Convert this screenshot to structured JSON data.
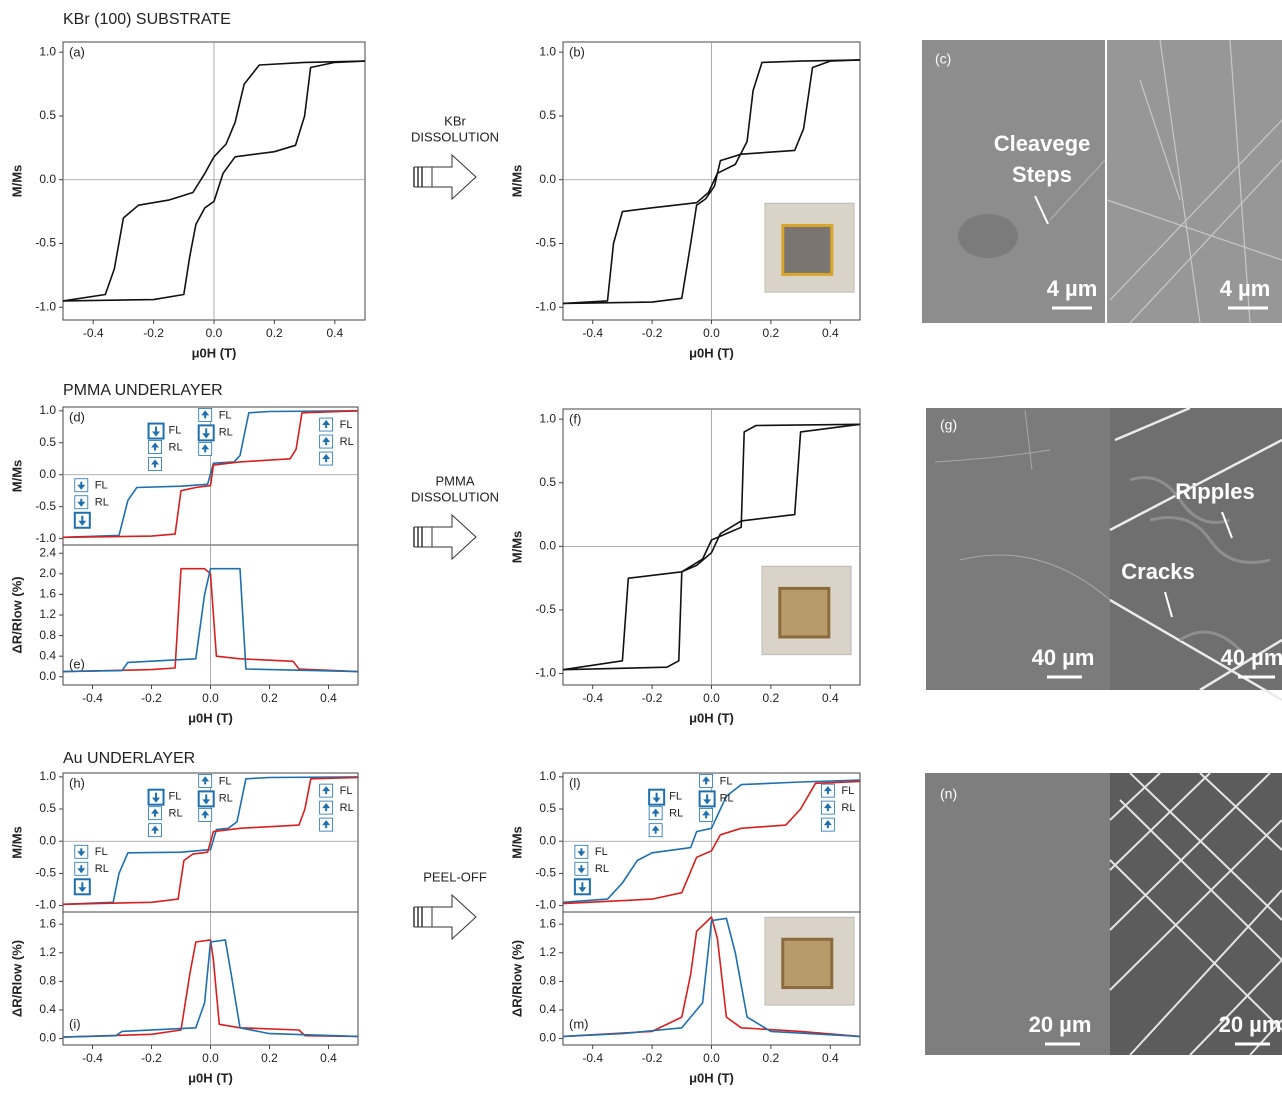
{
  "sections": [
    "KBr (100) SUBSTRATE",
    "PMMA UNDERLAYER",
    "Au UNDERLAYER"
  ],
  "transfers": [
    {
      "lines": [
        "KBr",
        "DISSOLUTION"
      ]
    },
    {
      "lines": [
        "PMMA",
        "DISSOLUTION"
      ]
    },
    {
      "lines": [
        "PEEL-OFF"
      ]
    }
  ],
  "images": [
    {
      "panel": "(c)",
      "notes": [
        "Cleavege",
        "Steps"
      ],
      "scale_bars": [
        "4 µm",
        "4 µm"
      ]
    },
    {
      "panel": "(g)",
      "notes": [
        "Ripples",
        "Cracks"
      ],
      "scale_bars": [
        "40 µm",
        "40 µm"
      ]
    },
    {
      "panel": "(n)",
      "scale_bars": [
        "20 µm",
        "20 µm"
      ]
    }
  ],
  "chart_data": [
    {
      "type": "line",
      "panel": "(a)",
      "ylabel": "M/Ms",
      "xlabel": "μ0H (T)",
      "xlim": [
        -0.5,
        0.5
      ],
      "ylim": [
        -1.1,
        1.08
      ],
      "xticks": [
        -0.4,
        -0.2,
        {
          "value": 0,
          "label": "0.0"
        },
        0.2,
        0.4
      ],
      "yticks": [
        {
          "value": -1,
          "label": "-1.0"
        },
        -0.5,
        {
          "value": 0,
          "label": "0.0"
        },
        0.5,
        {
          "value": 1,
          "label": "1.0"
        }
      ],
      "series": [
        {
          "color": "#111111",
          "x": [
            0.5,
            0.3,
            0.15,
            0.1,
            0.07,
            0.04,
            0,
            -0.03,
            -0.07,
            -0.15,
            -0.25,
            -0.3,
            -0.33,
            -0.36,
            -0.5
          ],
          "values": [
            0.93,
            0.92,
            0.9,
            0.75,
            0.45,
            0.28,
            0.18,
            0.05,
            -0.1,
            -0.16,
            -0.2,
            -0.3,
            -0.7,
            -0.9,
            -0.95
          ]
        },
        {
          "color": "#111111",
          "x": [
            -0.5,
            -0.2,
            -0.1,
            -0.08,
            -0.06,
            -0.03,
            0,
            0.03,
            0.07,
            0.2,
            0.27,
            0.3,
            0.32,
            0.4,
            0.5
          ],
          "values": [
            -0.95,
            -0.94,
            -0.9,
            -0.6,
            -0.35,
            -0.22,
            -0.17,
            0.05,
            0.18,
            0.22,
            0.27,
            0.5,
            0.88,
            0.92,
            0.93
          ]
        }
      ]
    },
    {
      "type": "line",
      "panel": "(b)",
      "ylabel": "M/Ms",
      "xlabel": "μ0H (T)",
      "xlim": [
        -0.5,
        0.5
      ],
      "ylim": [
        -1.1,
        1.08
      ],
      "xticks": [
        -0.4,
        -0.2,
        {
          "value": 0,
          "label": "0.0"
        },
        0.2,
        0.4
      ],
      "yticks": [
        {
          "value": -1,
          "label": "-1.0"
        },
        -0.5,
        {
          "value": 0,
          "label": "0.0"
        },
        0.5,
        {
          "value": 1,
          "label": "1.0"
        }
      ],
      "series": [
        {
          "color": "#111111",
          "x": [
            0.5,
            0.3,
            0.17,
            0.14,
            0.12,
            0.08,
            0.02,
            -0.01,
            -0.05,
            -0.2,
            -0.3,
            -0.33,
            -0.35,
            -0.5
          ],
          "values": [
            0.94,
            0.93,
            0.92,
            0.7,
            0.3,
            0.12,
            0.05,
            -0.1,
            -0.18,
            -0.22,
            -0.25,
            -0.5,
            -0.95,
            -0.97
          ]
        },
        {
          "color": "#111111",
          "x": [
            -0.5,
            -0.2,
            -0.1,
            -0.07,
            -0.05,
            -0.02,
            0.01,
            0.03,
            0.1,
            0.28,
            0.31,
            0.34,
            0.4,
            0.5
          ],
          "values": [
            -0.97,
            -0.96,
            -0.93,
            -0.5,
            -0.2,
            -0.15,
            -0.05,
            0.15,
            0.2,
            0.23,
            0.4,
            0.88,
            0.93,
            0.94
          ]
        }
      ]
    },
    {
      "type": "line",
      "panel": "(d)",
      "ylabel": "M/Ms",
      "xlim": [
        -0.5,
        0.5
      ],
      "ylim": [
        -1.1,
        1.06
      ],
      "yticks": [
        {
          "value": -1,
          "label": "-1.0"
        },
        -0.5,
        {
          "value": 0,
          "label": "0.0"
        },
        0.5,
        {
          "value": 1,
          "label": "1.0"
        }
      ],
      "states": [
        {
          "labels": [
            "FL",
            "RL"
          ]
        },
        {
          "labels": [
            "FL",
            "RL"
          ]
        },
        {
          "labels": [
            "FL",
            "RL"
          ]
        },
        {
          "labels": [
            "FL",
            "RL"
          ]
        }
      ],
      "series": [
        {
          "color": "#1f6fad",
          "x": [
            0.5,
            0.2,
            0.13,
            0.1,
            0.08,
            0.01,
            -0.01,
            -0.1,
            -0.25,
            -0.28,
            -0.31,
            -0.5
          ],
          "values": [
            1.0,
            0.99,
            0.97,
            0.3,
            0.2,
            0.18,
            -0.15,
            -0.18,
            -0.2,
            -0.4,
            -0.95,
            -0.98
          ]
        },
        {
          "color": "#d62020",
          "x": [
            -0.5,
            -0.2,
            -0.12,
            -0.1,
            -0.05,
            0,
            0.01,
            0.1,
            0.27,
            0.29,
            0.31,
            0.5
          ],
          "values": [
            -0.98,
            -0.96,
            -0.93,
            -0.25,
            -0.2,
            -0.17,
            0.15,
            0.2,
            0.25,
            0.4,
            0.97,
            1.0
          ]
        }
      ]
    },
    {
      "type": "line",
      "panel": "(e)",
      "ylabel": "ΔR/Rlow (%)",
      "xlabel": "μ0H (T)",
      "xlim": [
        -0.5,
        0.5
      ],
      "ylim": [
        -0.16,
        2.56
      ],
      "xticks": [
        -0.4,
        -0.2,
        {
          "value": 0,
          "label": "0.0"
        },
        0.2,
        0.4
      ],
      "yticks": [
        {
          "value": 0,
          "label": "0.0"
        },
        0.4,
        0.8,
        1.2,
        1.6,
        {
          "value": 2,
          "label": "2.0"
        },
        2.4
      ],
      "series": [
        {
          "color": "#d62020",
          "x": [
            -0.5,
            -0.2,
            -0.12,
            -0.1,
            -0.02,
            0,
            0.02,
            0.1,
            0.28,
            0.3,
            0.5
          ],
          "values": [
            0.1,
            0.14,
            0.17,
            2.1,
            2.1,
            2.0,
            0.4,
            0.35,
            0.3,
            0.15,
            0.1
          ]
        },
        {
          "color": "#1f6fad",
          "x": [
            -0.5,
            -0.3,
            -0.28,
            -0.05,
            -0.02,
            0,
            0.1,
            0.12,
            0.5
          ],
          "values": [
            0.1,
            0.12,
            0.28,
            0.35,
            1.6,
            2.1,
            2.1,
            0.15,
            0.1
          ]
        }
      ]
    },
    {
      "type": "line",
      "panel": "(f)",
      "ylabel": "M/Ms",
      "xlabel": "μ0H (T)",
      "xlim": [
        -0.5,
        0.5
      ],
      "ylim": [
        -1.09,
        1.08
      ],
      "xticks": [
        -0.4,
        -0.2,
        {
          "value": 0,
          "label": "0.0"
        },
        0.2,
        0.4
      ],
      "yticks": [
        {
          "value": -1,
          "label": "-1.0"
        },
        -0.5,
        {
          "value": 0,
          "label": "0.0"
        },
        0.5,
        {
          "value": 1,
          "label": "1.0"
        }
      ],
      "series": [
        {
          "color": "#111111",
          "x": [
            0.5,
            0.15,
            0.11,
            0.1,
            0.05,
            0,
            -0.03,
            -0.1,
            -0.28,
            -0.3,
            -0.5
          ],
          "values": [
            0.96,
            0.95,
            0.9,
            0.15,
            0.1,
            0.05,
            -0.1,
            -0.2,
            -0.25,
            -0.9,
            -0.97
          ]
        },
        {
          "color": "#111111",
          "x": [
            -0.5,
            -0.15,
            -0.11,
            -0.1,
            -0.05,
            0,
            0.03,
            0.1,
            0.28,
            0.3,
            0.5
          ],
          "values": [
            -0.97,
            -0.95,
            -0.9,
            -0.2,
            -0.15,
            -0.05,
            0.1,
            0.2,
            0.25,
            0.9,
            0.96
          ]
        }
      ]
    },
    {
      "type": "line",
      "panel": "(h)",
      "ylabel": "M/Ms",
      "xlim": [
        -0.5,
        0.5
      ],
      "ylim": [
        -1.1,
        1.06
      ],
      "yticks": [
        {
          "value": -1,
          "label": "-1.0"
        },
        -0.5,
        {
          "value": 0,
          "label": "0.0"
        },
        0.5,
        {
          "value": 1,
          "label": "1.0"
        }
      ],
      "states": [
        {
          "labels": [
            "FL",
            "RL"
          ]
        },
        {
          "labels": [
            "FL",
            "RL"
          ]
        },
        {
          "labels": [
            "FL",
            "RL"
          ]
        },
        {
          "labels": [
            "FL",
            "RL"
          ]
        }
      ],
      "series": [
        {
          "color": "#1f6fad",
          "x": [
            0.5,
            0.2,
            0.12,
            0.09,
            0.06,
            0.02,
            0,
            -0.1,
            -0.28,
            -0.31,
            -0.33,
            -0.5
          ],
          "values": [
            1.0,
            0.99,
            0.97,
            0.3,
            0.2,
            0.18,
            -0.13,
            -0.17,
            -0.18,
            -0.5,
            -0.95,
            -0.98
          ]
        },
        {
          "color": "#d62020",
          "x": [
            -0.5,
            -0.2,
            -0.11,
            -0.09,
            -0.06,
            -0.01,
            0.01,
            0.1,
            0.3,
            0.32,
            0.34,
            0.5
          ],
          "values": [
            -0.98,
            -0.95,
            -0.9,
            -0.3,
            -0.2,
            -0.17,
            0.15,
            0.2,
            0.25,
            0.5,
            0.97,
            0.99
          ]
        }
      ]
    },
    {
      "type": "line",
      "panel": "(i)",
      "ylabel": "ΔR/Rlow (%)",
      "xlabel": "μ0H (T)",
      "xlim": [
        -0.5,
        0.5
      ],
      "ylim": [
        -0.09,
        1.77
      ],
      "xticks": [
        -0.4,
        -0.2,
        {
          "value": 0,
          "label": "0.0"
        },
        0.2,
        0.4
      ],
      "yticks": [
        {
          "value": 0,
          "label": "0.0"
        },
        0.4,
        0.8,
        1.2,
        1.6
      ],
      "series": [
        {
          "color": "#d62020",
          "x": [
            -0.5,
            -0.2,
            -0.1,
            -0.07,
            -0.05,
            0,
            0.01,
            0.03,
            0.1,
            0.3,
            0.32,
            0.5
          ],
          "values": [
            0.02,
            0.06,
            0.12,
            0.9,
            1.35,
            1.38,
            1.1,
            0.2,
            0.15,
            0.12,
            0.04,
            0.03
          ]
        },
        {
          "color": "#1f6fad",
          "x": [
            -0.5,
            -0.32,
            -0.3,
            -0.05,
            -0.02,
            0,
            0.05,
            0.07,
            0.1,
            0.2,
            0.5
          ],
          "values": [
            0.02,
            0.04,
            0.1,
            0.15,
            0.5,
            1.35,
            1.38,
            0.9,
            0.15,
            0.07,
            0.03
          ]
        }
      ]
    },
    {
      "type": "line",
      "panel": "(l)",
      "ylabel": "M/Ms",
      "xlim": [
        -0.5,
        0.5
      ],
      "ylim": [
        -1.1,
        1.06
      ],
      "yticks": [
        {
          "value": -1,
          "label": "-1.0"
        },
        -0.5,
        {
          "value": 0,
          "label": "0.0"
        },
        0.5,
        {
          "value": 1,
          "label": "1.0"
        }
      ],
      "states": [
        {
          "labels": [
            "FL",
            "RL"
          ]
        },
        {
          "labels": [
            "FL",
            "RL"
          ]
        },
        {
          "labels": [
            "FL",
            "RL"
          ]
        },
        {
          "labels": [
            "FL",
            "RL"
          ]
        }
      ],
      "series": [
        {
          "color": "#1f6fad",
          "x": [
            0.5,
            0.3,
            0.1,
            0.05,
            0,
            -0.05,
            -0.07,
            -0.2,
            -0.25,
            -0.3,
            -0.35,
            -0.5
          ],
          "values": [
            0.95,
            0.92,
            0.88,
            0.7,
            0.2,
            0.15,
            -0.1,
            -0.18,
            -0.3,
            -0.65,
            -0.9,
            -0.95
          ]
        },
        {
          "color": "#d62020",
          "x": [
            -0.5,
            -0.2,
            -0.1,
            -0.05,
            0,
            0.03,
            0.1,
            0.25,
            0.3,
            0.35,
            0.5
          ],
          "values": [
            -0.97,
            -0.9,
            -0.8,
            -0.25,
            -0.15,
            0.1,
            0.2,
            0.25,
            0.5,
            0.9,
            0.93
          ]
        }
      ]
    },
    {
      "type": "line",
      "panel": "(m)",
      "ylabel": "ΔR/Rlow (%)",
      "xlabel": "μ0H (T)",
      "xlim": [
        -0.5,
        0.5
      ],
      "ylim": [
        -0.09,
        1.77
      ],
      "xticks": [
        -0.4,
        -0.2,
        {
          "value": 0,
          "label": "0.0"
        },
        0.2,
        0.4
      ],
      "yticks": [
        {
          "value": 0,
          "label": "0.0"
        },
        0.4,
        0.8,
        1.2,
        1.6
      ],
      "series": [
        {
          "color": "#d62020",
          "x": [
            -0.5,
            -0.2,
            -0.1,
            -0.07,
            -0.05,
            0,
            0.02,
            0.05,
            0.1,
            0.3,
            0.5
          ],
          "values": [
            0.03,
            0.1,
            0.3,
            0.9,
            1.5,
            1.7,
            1.4,
            0.3,
            0.15,
            0.1,
            0.03
          ]
        },
        {
          "color": "#1f6fad",
          "x": [
            -0.5,
            -0.3,
            -0.1,
            -0.03,
            0,
            0.05,
            0.08,
            0.12,
            0.2,
            0.5
          ],
          "values": [
            0.03,
            0.07,
            0.15,
            0.5,
            1.65,
            1.68,
            1.2,
            0.3,
            0.1,
            0.03
          ]
        }
      ]
    }
  ]
}
